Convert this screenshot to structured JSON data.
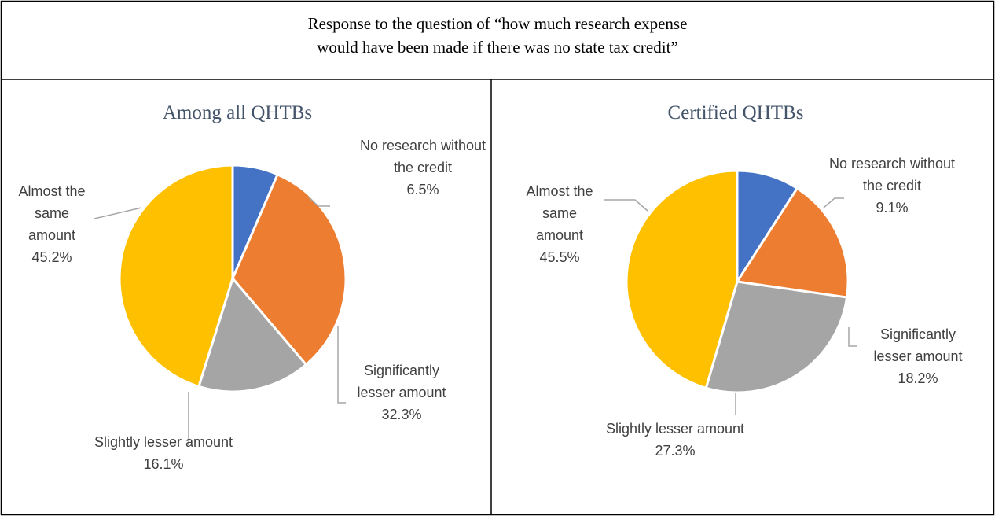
{
  "header": {
    "lines": [
      "Response to the question of “how much research expense",
      "would have been made if there was no state tax credit”"
    ]
  },
  "chart_data": [
    {
      "type": "pie",
      "title": "Among all QHTBs",
      "categories": [
        "No research without the credit",
        "Significantly lesser amount",
        "Slightly lesser amount",
        "Almost the same amount"
      ],
      "values": [
        6.5,
        32.3,
        16.1,
        45.2
      ],
      "value_labels": [
        "6.5%",
        "32.3%",
        "16.1%",
        "45.2%"
      ],
      "colors": [
        "#4472c4",
        "#ed7d31",
        "#a5a5a5",
        "#ffc000"
      ]
    },
    {
      "type": "pie",
      "title": "Certified QHTBs",
      "categories": [
        "No research without the credit",
        "Significantly lesser amount",
        "Slightly lesser amount",
        "Almost the same amount"
      ],
      "values": [
        9.1,
        18.2,
        27.3,
        45.5
      ],
      "value_labels": [
        "9.1%",
        "18.2%",
        "27.3%",
        "45.5%"
      ],
      "colors": [
        "#4472c4",
        "#ed7d31",
        "#a5a5a5",
        "#ffc000"
      ]
    }
  ]
}
